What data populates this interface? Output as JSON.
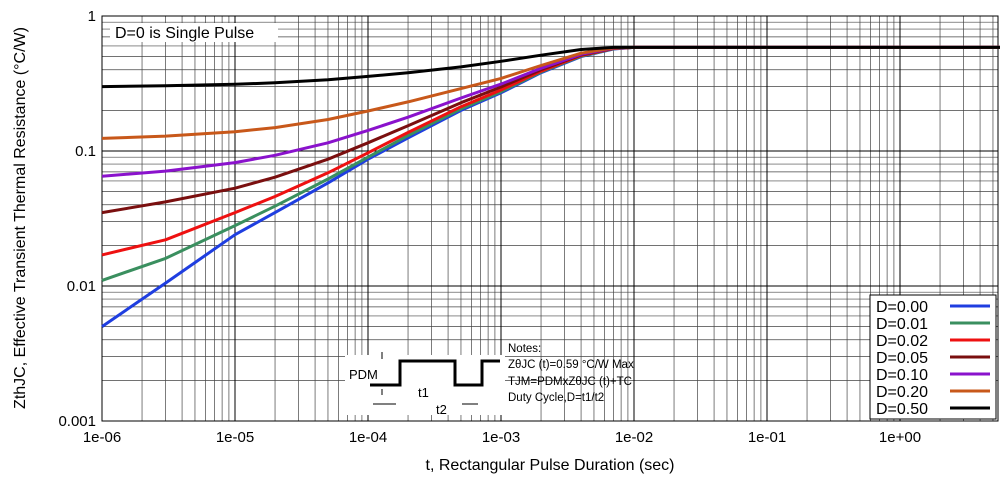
{
  "chart_data": {
    "type": "line",
    "title": "",
    "xlabel": "t, Rectangular Pulse Duration (sec)",
    "ylabel": "ZthJC, Effective Transient Thermal Resistance (°C/W)",
    "xscale": "log",
    "yscale": "log",
    "xlim": [
      1e-06,
      10
    ],
    "ylim": [
      0.001,
      1
    ],
    "x_ticks": [
      "1e-06",
      "1e-05",
      "1e-04",
      "1e-03",
      "1e-02",
      "1e-01",
      "1e+00"
    ],
    "y_ticks": [
      "0.001",
      "0.01",
      "0.1",
      "1"
    ],
    "grid": true,
    "legend_position": "bottom-right",
    "annotation": "D=0 is Single Pulse",
    "series": [
      {
        "name": "D=0.00",
        "color": "#1f3ee0",
        "x": [
          1e-06,
          3e-06,
          1e-05,
          2e-05,
          5e-05,
          0.0001,
          0.0002,
          0.0005,
          0.001,
          0.002,
          0.004,
          0.007,
          0.01
        ],
        "y": [
          0.005,
          0.0105,
          0.024,
          0.035,
          0.058,
          0.087,
          0.125,
          0.2,
          0.27,
          0.38,
          0.5,
          0.57,
          0.585
        ]
      },
      {
        "name": "D=0.01",
        "color": "#3a8f5f",
        "x": [
          1e-06,
          3e-06,
          1e-05,
          2e-05,
          5e-05,
          0.0001,
          0.0002,
          0.0005,
          0.001,
          0.002,
          0.004,
          0.007,
          0.01
        ],
        "y": [
          0.011,
          0.016,
          0.028,
          0.039,
          0.062,
          0.09,
          0.13,
          0.205,
          0.275,
          0.385,
          0.505,
          0.572,
          0.585
        ]
      },
      {
        "name": "D=0.02",
        "color": "#ee1111",
        "x": [
          1e-06,
          3e-06,
          1e-05,
          2e-05,
          5e-05,
          0.0001,
          0.0002,
          0.0005,
          0.001,
          0.002,
          0.004,
          0.007,
          0.01
        ],
        "y": [
          0.017,
          0.022,
          0.035,
          0.046,
          0.069,
          0.097,
          0.137,
          0.213,
          0.283,
          0.39,
          0.51,
          0.574,
          0.585
        ]
      },
      {
        "name": "D=0.05",
        "color": "#7a0f0f",
        "x": [
          1e-06,
          3e-06,
          1e-05,
          2e-05,
          5e-05,
          0.0001,
          0.0002,
          0.0005,
          0.001,
          0.002,
          0.004,
          0.007,
          0.01
        ],
        "y": [
          0.035,
          0.042,
          0.053,
          0.064,
          0.087,
          0.115,
          0.154,
          0.228,
          0.298,
          0.4,
          0.515,
          0.576,
          0.585
        ]
      },
      {
        "name": "D=0.10",
        "color": "#8a12cc",
        "x": [
          1e-06,
          3e-06,
          1e-05,
          2e-05,
          5e-05,
          0.0001,
          0.0002,
          0.0005,
          0.001,
          0.002,
          0.004,
          0.007,
          0.01
        ],
        "y": [
          0.065,
          0.071,
          0.082,
          0.093,
          0.115,
          0.142,
          0.178,
          0.247,
          0.313,
          0.41,
          0.52,
          0.578,
          0.585
        ]
      },
      {
        "name": "D=0.20",
        "color": "#c8581a",
        "x": [
          1e-06,
          3e-06,
          1e-05,
          2e-05,
          5e-05,
          0.0001,
          0.0002,
          0.0005,
          0.001,
          0.002,
          0.004,
          0.007,
          0.01
        ],
        "y": [
          0.124,
          0.129,
          0.139,
          0.149,
          0.171,
          0.198,
          0.231,
          0.29,
          0.345,
          0.43,
          0.53,
          0.58,
          0.585
        ]
      },
      {
        "name": "D=0.50",
        "color": "#000000",
        "x": [
          1e-06,
          3e-06,
          1e-05,
          2e-05,
          5e-05,
          0.0001,
          0.0002,
          0.0005,
          0.001,
          0.002,
          0.004,
          0.007,
          0.01
        ],
        "y": [
          0.3,
          0.304,
          0.312,
          0.32,
          0.337,
          0.357,
          0.38,
          0.42,
          0.462,
          0.512,
          0.565,
          0.585,
          0.585
        ]
      }
    ],
    "flat_from": 0.01,
    "flat_value": 0.585,
    "notes": {
      "heading": "Notes:",
      "line1": "ZθJC (t)=0.59 °C/W Max",
      "line2": "TJM=PDMxZθJC (t)+TC",
      "line3": "Duty Cycle,D=t1/t2"
    },
    "waveform_labels": {
      "pdm": "PDM",
      "t1": "t1",
      "t2": "t2"
    }
  }
}
